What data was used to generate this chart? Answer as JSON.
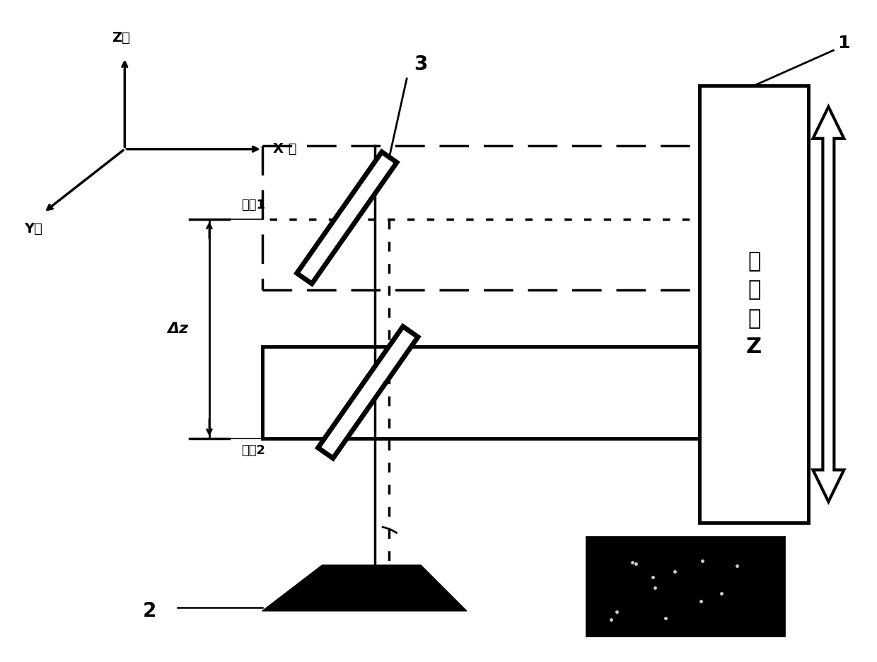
{
  "bg_color": "#ffffff",
  "line_color": "#000000",
  "fig_width": 12.4,
  "fig_height": 9.36,
  "labels": {
    "z_axis": "Z轴",
    "y_axis": "Y轴",
    "x_axis": "X 轴",
    "pos1": "位置1",
    "pos2": "位置2",
    "delta_z": "Δz",
    "theta": "θ",
    "label1": "1",
    "label2": "2",
    "label3": "3",
    "machine": "机\n床\n轴\nZ"
  }
}
